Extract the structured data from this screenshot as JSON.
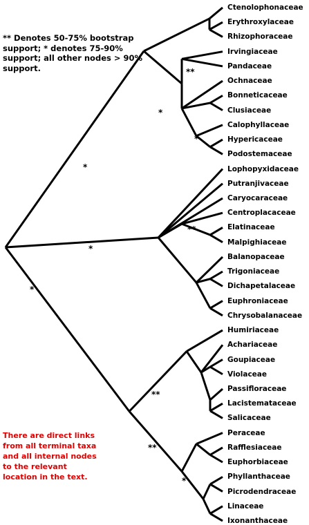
{
  "legend": "** Denotes 50-75% bootstrap support; * denotes 75-90% support; all other nodes > 90% support.",
  "note": "There are direct links from all terminal taxa and all internal nodes to the relevant location in the text.",
  "taxa": [
    "Ctenolophonaceae",
    "Erythroxylaceae",
    "Rhizophoraceae",
    "Irvingiaceae",
    "Pandaceae",
    "Ochnaceae",
    "Bonneticaceae",
    "Clusiaceae",
    "Calophyllaceae",
    "Hypericaceae",
    "Podostemaceae",
    "Lophopyxidaceae",
    "Putranjivaceae",
    "Caryocaraceae",
    "Centroplacaceae",
    "Elatinaceae",
    "Malpighiaceae",
    "Balanopaceae",
    "Trigoniaceae",
    "Dichapetalaceae",
    "Euphroniaceae",
    "Chrysobalanaceae",
    "Humiriaceae",
    "Achariaceae",
    "Goupiaceae",
    "Violaceae",
    "Passifloraceae",
    "Lacistemataceae",
    "Salicaceae",
    "Peraceae",
    "Rafflesiaceae",
    "Euphorbiaceae",
    "Phyllanthaceae",
    "Picrodendraceae",
    "Linaceae",
    "Ixonanthaceae"
  ],
  "support_marks": [
    "*",
    "**",
    "*",
    "*",
    "*",
    "**",
    "*",
    "**",
    "**",
    "*"
  ]
}
